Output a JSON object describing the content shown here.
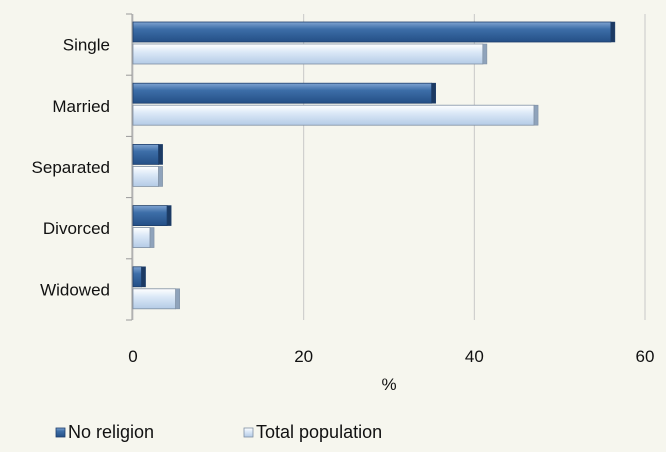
{
  "chart_data": {
    "type": "bar",
    "orientation": "horizontal",
    "categories": [
      "Single",
      "Married",
      "Separated",
      "Divorced",
      "Widowed"
    ],
    "series": [
      {
        "name": "No religion",
        "values": [
          56,
          35,
          3,
          4,
          1
        ],
        "color": "#3d6ea8"
      },
      {
        "name": "Total population",
        "values": [
          41,
          47,
          3,
          2,
          5
        ],
        "color": "#c9ddf3"
      }
    ],
    "xlabel": "%",
    "ylabel": "",
    "xlim": [
      0,
      60
    ],
    "xticks": [
      "0",
      "20",
      "40",
      "60"
    ],
    "grid": true,
    "legend_position": "bottom-left"
  }
}
